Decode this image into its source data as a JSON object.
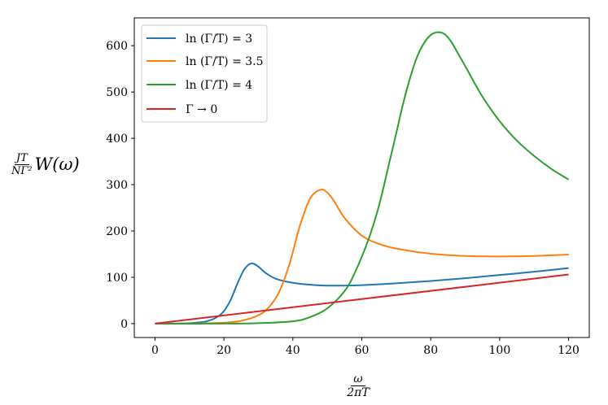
{
  "chart_data": {
    "type": "line",
    "ylabel": {
      "numerator": "JT",
      "denominator": "NΓ²",
      "rest": "W(ω)"
    },
    "xlabel": {
      "numerator": "ω",
      "denominator": "2πT"
    },
    "xlim": [
      -6,
      126
    ],
    "ylim": [
      -30,
      660
    ],
    "xticks": [
      0,
      20,
      40,
      60,
      80,
      100,
      120
    ],
    "yticks": [
      0,
      100,
      200,
      300,
      400,
      500,
      600
    ],
    "legend_position": "top-left",
    "grid": false,
    "series": [
      {
        "name": "ln (Γ/T) = 3",
        "color": "#1f77b4",
        "x": [
          0,
          5,
          10,
          12,
          15,
          18,
          20,
          22,
          24,
          26,
          28,
          30,
          32,
          35,
          40,
          45,
          50,
          55,
          60,
          70,
          80,
          90,
          100,
          110,
          120
        ],
        "y": [
          0,
          0,
          1,
          2,
          5,
          14,
          27,
          52,
          88,
          118,
          130,
          123,
          110,
          97,
          88,
          84,
          82,
          82,
          83,
          87,
          92,
          98,
          105,
          112,
          120
        ]
      },
      {
        "name": "ln (Γ/T) = 3.5",
        "color": "#ff7f0e",
        "x": [
          0,
          10,
          20,
          25,
          30,
          33,
          36,
          39,
          42,
          45,
          48,
          50,
          52,
          55,
          60,
          65,
          70,
          80,
          90,
          100,
          110,
          120
        ],
        "y": [
          0,
          0,
          2,
          6,
          18,
          35,
          68,
          128,
          210,
          270,
          289,
          283,
          264,
          228,
          190,
          172,
          162,
          151,
          146,
          145,
          146,
          149
        ]
      },
      {
        "name": "ln (Γ/T) = 4",
        "color": "#2ca02c",
        "x": [
          0,
          20,
          30,
          40,
          45,
          50,
          55,
          58,
          62,
          65,
          68,
          70,
          72,
          74,
          76,
          78,
          80,
          82,
          84,
          86,
          88,
          90,
          95,
          100,
          105,
          110,
          115,
          120
        ],
        "y": [
          0,
          0,
          1,
          5,
          14,
          33,
          70,
          110,
          183,
          255,
          348,
          411,
          475,
          530,
          575,
          605,
          623,
          629,
          625,
          608,
          582,
          556,
          490,
          437,
          395,
          362,
          334,
          311
        ]
      },
      {
        "name": "Γ → 0",
        "color": "#d62728",
        "x": [
          0,
          120
        ],
        "y": [
          0,
          106
        ]
      }
    ]
  }
}
